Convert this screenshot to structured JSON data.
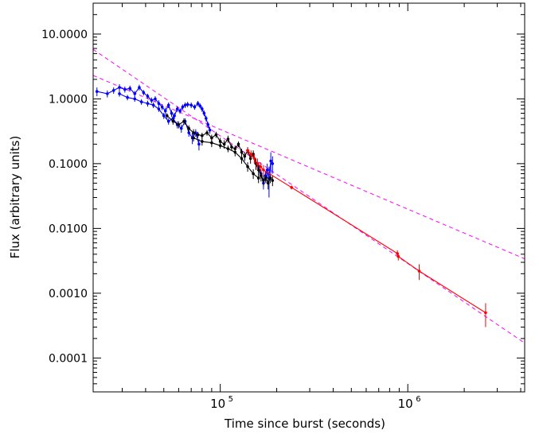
{
  "chart_data": {
    "type": "scatter",
    "title": "",
    "xlabel": "Time since burst (seconds)",
    "ylabel": "Flux (arbitrary units)",
    "x_scale": "log",
    "y_scale": "log",
    "xlim": [
      21000,
      4200000
    ],
    "ylim": [
      3e-05,
      30
    ],
    "x_ticks": [
      {
        "value": 100000,
        "label": "10",
        "exp": "5"
      },
      {
        "value": 1000000,
        "label": "10",
        "exp": "6"
      }
    ],
    "y_ticks": [
      {
        "value": 10,
        "label": "10.0000"
      },
      {
        "value": 1,
        "label": "1.0000"
      },
      {
        "value": 0.1,
        "label": "0.1000"
      },
      {
        "value": 0.01,
        "label": "0.0100"
      },
      {
        "value": 0.001,
        "label": "0.0010"
      },
      {
        "value": 0.0001,
        "label": "0.0001"
      }
    ],
    "grid": false,
    "series": [
      {
        "color": "#0000ff",
        "style": "line-markers",
        "points": [
          [
            22000,
            1.3,
            0.2
          ],
          [
            25000,
            1.2,
            0.15
          ],
          [
            27000,
            1.35,
            0.15
          ],
          [
            29000,
            1.5,
            0.18
          ],
          [
            31000,
            1.4,
            0.15
          ],
          [
            33000,
            1.45,
            0.15
          ],
          [
            35000,
            1.2,
            0.12
          ],
          [
            37000,
            1.5,
            0.15
          ],
          [
            39000,
            1.25,
            0.12
          ],
          [
            41000,
            1.1,
            0.1
          ],
          [
            43000,
            0.95,
            0.1
          ],
          [
            45000,
            1.0,
            0.1
          ],
          [
            47000,
            0.85,
            0.1
          ],
          [
            49000,
            0.75,
            0.08
          ],
          [
            51000,
            0.65,
            0.08
          ],
          [
            53000,
            0.8,
            0.08
          ],
          [
            55000,
            0.6,
            0.07
          ],
          [
            57000,
            0.55,
            0.06
          ],
          [
            59000,
            0.7,
            0.07
          ],
          [
            61000,
            0.65,
            0.06
          ],
          [
            63000,
            0.75,
            0.07
          ],
          [
            65000,
            0.8,
            0.08
          ],
          [
            67000,
            0.82,
            0.08
          ],
          [
            70000,
            0.8,
            0.08
          ],
          [
            73000,
            0.75,
            0.07
          ],
          [
            76000,
            0.85,
            0.08
          ],
          [
            78000,
            0.78,
            0.07
          ],
          [
            80000,
            0.7,
            0.07
          ],
          [
            82000,
            0.6,
            0.06
          ],
          [
            84000,
            0.5,
            0.05
          ],
          [
            86000,
            0.4,
            0.04
          ],
          [
            88000,
            0.33,
            0.04
          ]
        ]
      },
      {
        "color": "#0000ff",
        "style": "line-markers",
        "points": [
          [
            29000,
            1.2,
            0.12
          ],
          [
            32000,
            1.05,
            0.1
          ],
          [
            35000,
            1.0,
            0.1
          ],
          [
            38000,
            0.9,
            0.09
          ],
          [
            41000,
            0.85,
            0.09
          ],
          [
            44000,
            0.8,
            0.08
          ],
          [
            47000,
            0.7,
            0.07
          ],
          [
            50000,
            0.55,
            0.06
          ],
          [
            53000,
            0.45,
            0.05
          ],
          [
            56000,
            0.5,
            0.05
          ],
          [
            59000,
            0.4,
            0.05
          ],
          [
            62000,
            0.35,
            0.05
          ],
          [
            65000,
            0.45,
            0.05
          ],
          [
            68000,
            0.3,
            0.04
          ],
          [
            71000,
            0.25,
            0.05
          ],
          [
            74000,
            0.3,
            0.04
          ],
          [
            77000,
            0.2,
            0.04
          ]
        ]
      },
      {
        "color": "#0000ff",
        "style": "line-markers",
        "points": [
          [
            160000,
            0.09,
            0.015
          ],
          [
            165000,
            0.07,
            0.012
          ],
          [
            170000,
            0.05,
            0.01
          ],
          [
            174000,
            0.065,
            0.012
          ],
          [
            178000,
            0.08,
            0.02
          ],
          [
            182000,
            0.06,
            0.03
          ],
          [
            186000,
            0.11,
            0.04
          ],
          [
            190000,
            0.1,
            0.03
          ]
        ]
      },
      {
        "color": "#000000",
        "style": "line-markers",
        "points": [
          [
            52000,
            0.55,
            0.05
          ],
          [
            56000,
            0.45,
            0.05
          ],
          [
            60000,
            0.4,
            0.05
          ],
          [
            64000,
            0.45,
            0.05
          ],
          [
            68000,
            0.35,
            0.04
          ],
          [
            72000,
            0.3,
            0.04
          ],
          [
            76000,
            0.28,
            0.03
          ],
          [
            80000,
            0.27,
            0.03
          ],
          [
            85000,
            0.3,
            0.03
          ],
          [
            90000,
            0.25,
            0.03
          ],
          [
            95000,
            0.28,
            0.03
          ],
          [
            100000,
            0.22,
            0.03
          ],
          [
            105000,
            0.2,
            0.03
          ],
          [
            110000,
            0.24,
            0.03
          ],
          [
            115000,
            0.18,
            0.02
          ],
          [
            120000,
            0.17,
            0.02
          ],
          [
            125000,
            0.2,
            0.02
          ],
          [
            130000,
            0.15,
            0.02
          ],
          [
            135000,
            0.13,
            0.02
          ],
          [
            140000,
            0.16,
            0.02
          ],
          [
            145000,
            0.12,
            0.02
          ],
          [
            150000,
            0.14,
            0.02
          ],
          [
            155000,
            0.1,
            0.02
          ],
          [
            160000,
            0.08,
            0.015
          ],
          [
            165000,
            0.065,
            0.012
          ],
          [
            170000,
            0.055,
            0.01
          ],
          [
            175000,
            0.06,
            0.01
          ],
          [
            180000,
            0.05,
            0.01
          ],
          [
            185000,
            0.06,
            0.01
          ],
          [
            190000,
            0.055,
            0.01
          ]
        ]
      },
      {
        "color": "#000000",
        "style": "line-markers",
        "points": [
          [
            72000,
            0.25,
            0.03
          ],
          [
            80000,
            0.22,
            0.03
          ],
          [
            90000,
            0.21,
            0.03
          ],
          [
            100000,
            0.19,
            0.02
          ],
          [
            110000,
            0.17,
            0.02
          ],
          [
            120000,
            0.15,
            0.02
          ],
          [
            130000,
            0.12,
            0.02
          ],
          [
            140000,
            0.09,
            0.015
          ],
          [
            150000,
            0.07,
            0.012
          ],
          [
            160000,
            0.06,
            0.01
          ]
        ]
      },
      {
        "color": "#ff0000",
        "style": "line-markers",
        "points": [
          [
            140000,
            0.16,
            0.02
          ],
          [
            146000,
            0.14,
            0.02
          ],
          [
            152000,
            0.12,
            0.02
          ],
          [
            158000,
            0.1,
            0.02
          ],
          [
            164000,
            0.09,
            0.015
          ],
          [
            170000,
            0.08,
            0.015
          ],
          [
            240000,
            0.043,
            0.003
          ],
          [
            880000,
            0.0041,
            0.0005
          ],
          [
            890000,
            0.0037,
            0.0005
          ],
          [
            1150000,
            0.0022,
            0.0006
          ],
          [
            2600000,
            0.0005,
            0.0002
          ]
        ]
      }
    ],
    "fit_lines": [
      {
        "color": "#ff00ff",
        "style": "dashed",
        "from": [
          21000,
          5.8
        ],
        "to": [
          4200000,
          0.00017
        ]
      },
      {
        "color": "#ff00ff",
        "style": "dashed",
        "from": [
          21000,
          2.3
        ],
        "to": [
          4200000,
          0.0034
        ]
      }
    ]
  }
}
